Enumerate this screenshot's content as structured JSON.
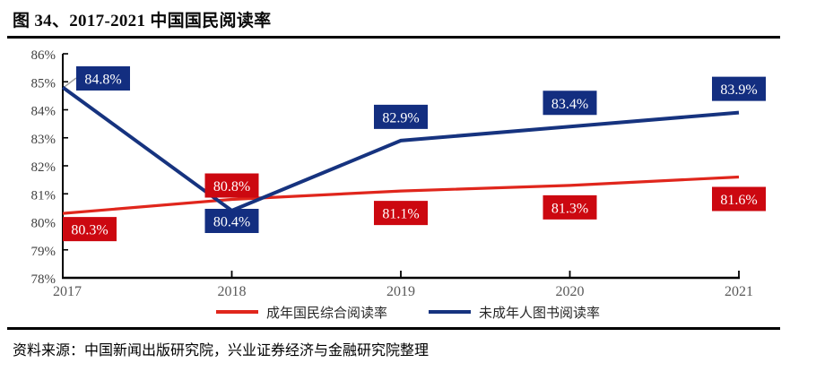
{
  "figure": {
    "title": "图 34、2017-2021 中国国民阅读率",
    "source": "资料来源：中国新闻出版研究院，兴业证券经济与金融研究院整理"
  },
  "colors": {
    "red_line": "#e0261c",
    "red_box": "#cc0810",
    "blue_line": "#16337f",
    "blue_box": "#132e80",
    "axis": "#000000",
    "tick_label": "#3f3f3f",
    "year_label": "#595959",
    "leader": "#a0a0a0",
    "label_text": "#ffffff"
  },
  "chart_data": {
    "type": "line",
    "title": "2017-2021 中国国民阅读率",
    "x": [
      "2017",
      "2018",
      "2019",
      "2020",
      "2021"
    ],
    "series": [
      {
        "id": "adult",
        "name": "成年国民综合阅读率",
        "color_key": "red",
        "values": [
          80.3,
          80.8,
          81.1,
          81.3,
          81.6
        ],
        "label_sides": [
          "below",
          "above",
          "below",
          "below",
          "below"
        ]
      },
      {
        "id": "minor",
        "name": "未成年人图书阅读率",
        "color_key": "blue",
        "values": [
          84.8,
          80.4,
          82.9,
          83.4,
          83.9
        ],
        "label_sides": [
          "callout",
          "below",
          "above",
          "above",
          "above"
        ]
      }
    ],
    "ylim": [
      78,
      86
    ],
    "yticks": [
      "78%",
      "79%",
      "80%",
      "81%",
      "82%",
      "83%",
      "84%",
      "85%",
      "86%"
    ],
    "ytick_step": 1,
    "xlabel": "",
    "ylabel": "",
    "grid": false,
    "legend_position": "bottom",
    "data_labels": true
  }
}
